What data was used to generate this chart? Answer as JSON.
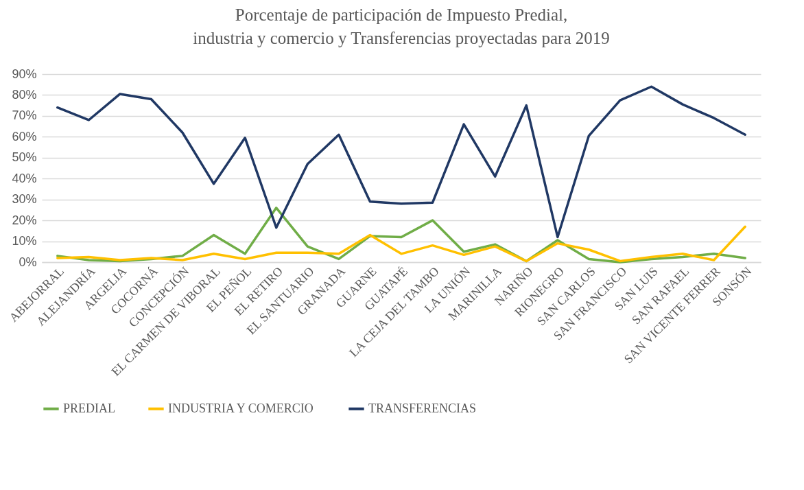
{
  "chart_data": {
    "type": "line",
    "title": "Porcentaje de participación de Impuesto Predial, industria y comercio y Transferencias proyectadas para 2019",
    "categories": [
      "ABEJORRAL",
      "ALEJANDRÍA",
      "ARGELIA",
      "COCORNÁ",
      "CONCEPCIÓN",
      "EL CARMEN DE VIBORAL",
      "EL PEÑOL",
      "EL RETIRO",
      "EL SANTUARIO",
      "GRANADA",
      "GUARNE",
      "GUATAPÉ",
      "LA CEJA DEL TAMBO",
      "LA UNIÓN",
      "MARINILLA",
      "NARIÑO",
      "RIONEGRO",
      "SAN CARLOS",
      "SAN FRANCISCO",
      "SAN LUIS",
      "SAN RAFAEL",
      "SAN VICENTE FERRER",
      "SONSÓN"
    ],
    "series": [
      {
        "name": "PREDIAL",
        "color": "#70ad47",
        "values": [
          3,
          1,
          0.5,
          1.5,
          3,
          13,
          4,
          26,
          7.5,
          1.5,
          12.5,
          12,
          20,
          5,
          8.5,
          0.5,
          10.5,
          1.5,
          0,
          1.5,
          2.5,
          4,
          2
        ]
      },
      {
        "name": "INDUSTRIA Y COMERCIO",
        "color": "#ffc000",
        "values": [
          2,
          2.5,
          1,
          2,
          1,
          4,
          1.5,
          4.5,
          4.5,
          4,
          13,
          4,
          8,
          3.5,
          7.5,
          0.5,
          9,
          6,
          0.5,
          2.5,
          4,
          1,
          17
        ]
      },
      {
        "name": "TRANSFERENCIAS",
        "color": "#203864",
        "values": [
          74,
          68,
          80.5,
          78,
          62,
          37.5,
          59.5,
          16.5,
          47,
          61,
          29,
          28,
          28.5,
          66,
          41,
          75,
          12,
          60.5,
          77.5,
          84,
          75.5,
          69,
          61
        ]
      }
    ],
    "ylim": [
      0,
      90
    ],
    "yticks": [
      {
        "value": 0,
        "label": "0%"
      },
      {
        "value": 10,
        "label": "10%"
      },
      {
        "value": 20,
        "label": "20%"
      },
      {
        "value": 30,
        "label": "30%"
      },
      {
        "value": 40,
        "label": "40%"
      },
      {
        "value": 50,
        "label": "50%"
      },
      {
        "value": 60,
        "label": "60%"
      },
      {
        "value": 70,
        "label": "70%"
      },
      {
        "value": 80,
        "label": "80%"
      },
      {
        "value": 90,
        "label": "90%"
      }
    ],
    "grid": "y",
    "legend": "bottom",
    "marker": "none",
    "line_style": "solid"
  }
}
